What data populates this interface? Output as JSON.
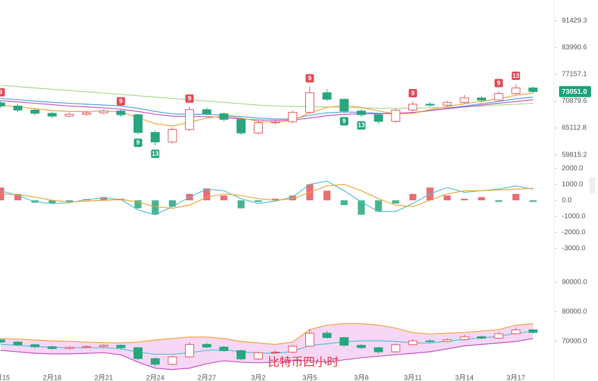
{
  "chart_data": [
    {
      "type": "candlestick",
      "log_scale": true,
      "categories": [
        "2月15",
        null,
        null,
        "2月18",
        null,
        null,
        "2月21",
        null,
        null,
        "2月24",
        null,
        null,
        "2月27",
        null,
        null,
        "3月2",
        null,
        null,
        "3月5",
        null,
        null,
        "3月8",
        null,
        null,
        "3月11",
        null,
        null,
        "3月14",
        null,
        null,
        "3月17",
        null
      ],
      "candles": {
        "open": [
          70500,
          69800,
          68900,
          68200,
          67600,
          68000,
          68300,
          68700,
          67900,
          64200,
          62300,
          64800,
          69000,
          68100,
          66900,
          64100,
          66200,
          66400,
          68400,
          72800,
          71300,
          68700,
          67900,
          66500,
          68900,
          70200,
          70000,
          70600,
          71600,
          71100,
          72600,
          73900
        ],
        "high": [
          71000,
          70200,
          69300,
          68600,
          68400,
          68700,
          69100,
          69000,
          68100,
          64600,
          65200,
          69600,
          69500,
          68400,
          67200,
          66600,
          66900,
          68800,
          74200,
          73600,
          71500,
          69100,
          68200,
          69300,
          70800,
          70700,
          71000,
          72300,
          72000,
          73100,
          74800,
          74200
        ],
        "low": [
          69400,
          68500,
          67800,
          67200,
          67300,
          67700,
          68000,
          67500,
          63800,
          61600,
          62000,
          64500,
          67800,
          66500,
          63700,
          63800,
          65800,
          66100,
          68200,
          70900,
          68300,
          67400,
          65900,
          66200,
          68600,
          69600,
          69700,
          70300,
          70700,
          70900,
          72300,
          72700
        ],
        "close": [
          69800,
          68900,
          68200,
          67600,
          68000,
          68300,
          68700,
          67900,
          64200,
          62300,
          64800,
          69000,
          68100,
          66900,
          64100,
          66200,
          66400,
          68400,
          72800,
          71300,
          68700,
          67900,
          66500,
          68900,
          70200,
          70000,
          70600,
          71600,
          71100,
          72600,
          73900,
          73051
        ]
      },
      "up_color": "#e5535c",
      "down_color": "#27a67f",
      "lines": [
        {
          "color": "#a6d98a",
          "values": [
            74500,
            74200,
            73900,
            73600,
            73300,
            73000,
            72700,
            72400,
            72100,
            71800,
            71500,
            71200,
            70900,
            70600,
            70300,
            70000,
            69800,
            69700,
            69700,
            69600,
            69500,
            69400,
            69300,
            69300,
            69300,
            69400,
            69500,
            69600,
            69800,
            70000,
            70200,
            70400
          ]
        },
        {
          "color": "#4a9fe0",
          "values": [
            71500,
            71200,
            70900,
            70600,
            70400,
            70200,
            70000,
            69800,
            69300,
            68600,
            68100,
            68000,
            68000,
            67800,
            67500,
            67200,
            67000,
            67000,
            67800,
            68300,
            68500,
            68400,
            68200,
            68100,
            68300,
            68800,
            69300,
            69800,
            70300,
            70800,
            71400,
            71800
          ]
        },
        {
          "color": "#c04cc0",
          "values": [
            71000,
            70700,
            70400,
            70100,
            69800,
            69600,
            69400,
            69100,
            68600,
            68000,
            67600,
            67500,
            67500,
            67300,
            67000,
            66800,
            66700,
            66800,
            67200,
            67700,
            68000,
            68100,
            68100,
            68200,
            68400,
            68800,
            69200,
            69600,
            70000,
            70400,
            70800,
            71200
          ]
        },
        {
          "color": "#f0a030",
          "values": [
            70000,
            69600,
            69200,
            68800,
            68600,
            68600,
            68700,
            68500,
            67300,
            66000,
            65500,
            66300,
            67200,
            67600,
            67200,
            66500,
            66300,
            66700,
            68300,
            69500,
            69900,
            69500,
            68700,
            68100,
            68200,
            69000,
            69700,
            70300,
            70800,
            71400,
            72200,
            72700
          ]
        }
      ],
      "markers": [
        {
          "index": 0,
          "label": "9",
          "color": "#e04b55",
          "side": "above"
        },
        {
          "index": 7,
          "label": "9",
          "color": "#e04b55",
          "side": "above"
        },
        {
          "index": 11,
          "label": "9",
          "color": "#e04b55",
          "side": "above"
        },
        {
          "index": 18,
          "label": "9",
          "color": "#e04b55",
          "side": "above"
        },
        {
          "index": 24,
          "label": "9",
          "color": "#e04b55",
          "side": "above"
        },
        {
          "index": 29,
          "label": "9",
          "color": "#e04b55",
          "side": "above"
        },
        {
          "index": 30,
          "label": "13",
          "color": "#e04b55",
          "side": "above"
        },
        {
          "index": 8,
          "label": "9",
          "color": "#26a17b",
          "side": "below"
        },
        {
          "index": 9,
          "label": "13",
          "color": "#26a17b",
          "side": "below"
        },
        {
          "index": 20,
          "label": "9",
          "color": "#26a17b",
          "side": "below"
        },
        {
          "index": 21,
          "label": "13",
          "color": "#26a17b",
          "side": "below"
        }
      ],
      "ylim": [
        58600,
        97600
      ],
      "yticks": [
        91429.3,
        83990.6,
        77157.1,
        70879.6,
        65112.8,
        59815.2
      ],
      "last_price": {
        "value": 73051.0,
        "label": "73051.0"
      },
      "last_price_color": "#1aa37a"
    },
    {
      "type": "macd",
      "histogram": [
        800,
        400,
        -150,
        -200,
        -100,
        80,
        200,
        100,
        -500,
        -900,
        -400,
        400,
        750,
        300,
        -500,
        -100,
        100,
        300,
        1000,
        600,
        -300,
        -900,
        -700,
        -200,
        400,
        800,
        300,
        100,
        200,
        -100,
        400,
        -100
      ],
      "up_color": "#e5535c",
      "down_color": "#27a67f",
      "lines": [
        {
          "color": "#4ec0d0",
          "values": [
            600,
            300,
            -100,
            -200,
            -150,
            50,
            150,
            50,
            -600,
            -900,
            -400,
            200,
            700,
            600,
            100,
            -200,
            -50,
            200,
            1000,
            1200,
            600,
            -100,
            -700,
            -700,
            -200,
            400,
            800,
            500,
            600,
            700,
            900,
            700
          ]
        },
        {
          "color": "#f0a030",
          "values": [
            400,
            350,
            200,
            0,
            -100,
            -50,
            0,
            50,
            -100,
            -400,
            -500,
            -300,
            200,
            400,
            300,
            100,
            0,
            100,
            500,
            900,
            1000,
            600,
            100,
            -300,
            -400,
            0,
            400,
            600,
            600,
            650,
            700,
            750
          ]
        }
      ],
      "ylim": [
        -3560,
        2440
      ],
      "yticks": [
        {
          "value": 2000,
          "label": "2000.0"
        },
        {
          "value": 1000,
          "label": "1000.0"
        },
        {
          "value": 0,
          "label": "0.0"
        },
        {
          "value": -1000,
          "label": "-1000.0"
        },
        {
          "value": -2000,
          "label": "-2000.0"
        },
        {
          "value": -3000,
          "label": "-3000.0"
        }
      ]
    },
    {
      "type": "bollinger",
      "upper": {
        "color": "#f0a030",
        "values": [
          71000,
          70800,
          70500,
          70200,
          70000,
          69800,
          69600,
          69500,
          69800,
          70500,
          71000,
          71500,
          71500,
          71000,
          70000,
          69500,
          69000,
          69800,
          74000,
          75500,
          76000,
          76000,
          75500,
          74500,
          73000,
          72500,
          72800,
          73000,
          73500,
          74000,
          75500,
          76000
        ]
      },
      "middle": {
        "color": "#4ec0d0",
        "values": [
          69000,
          68700,
          68300,
          68000,
          67900,
          67900,
          67900,
          67500,
          66400,
          65700,
          65700,
          66200,
          67000,
          67200,
          66500,
          66100,
          66000,
          66600,
          68700,
          69200,
          69900,
          70200,
          70200,
          70000,
          69500,
          69500,
          70100,
          70700,
          71200,
          71700,
          72700,
          73500
        ]
      },
      "lower": {
        "color": "#c04cc0",
        "values": [
          67000,
          66500,
          66000,
          65800,
          65800,
          66000,
          66200,
          65500,
          63000,
          61000,
          60500,
          61000,
          62500,
          63500,
          63000,
          62800,
          63000,
          63500,
          63500,
          63000,
          63800,
          64500,
          65000,
          65500,
          66000,
          66500,
          67500,
          68500,
          69000,
          69500,
          70000,
          71000
        ]
      },
      "band_fill": "#f6d8f6",
      "ylim": [
        59000,
        97000
      ],
      "yticks": [
        {
          "value": 90000,
          "label": "90000.0"
        },
        {
          "value": 80000,
          "label": "80000.0"
        },
        {
          "value": 70000,
          "label": "70000.0"
        }
      ],
      "watermark": "比特币四小时",
      "watermark_color": "#e0343c"
    }
  ]
}
